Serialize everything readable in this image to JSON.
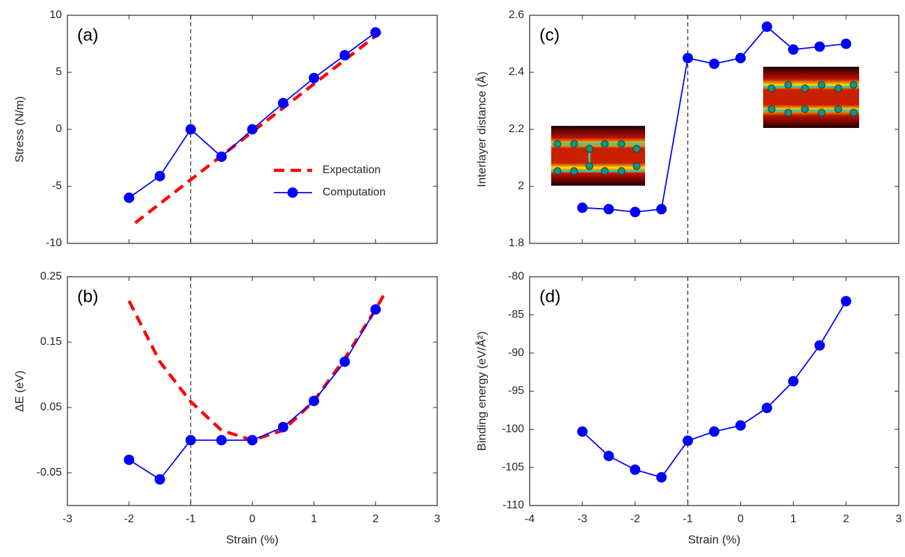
{
  "chart_data": [
    {
      "type": "line",
      "panel_label": "(a)",
      "ylabel": "Stress (N/m)",
      "xlim": [
        -3,
        3
      ],
      "xticks": [
        -3,
        -2,
        -1,
        0,
        1,
        2,
        3
      ],
      "ylim": [
        -10,
        10
      ],
      "yticks": [
        -10,
        -5,
        0,
        5,
        10
      ],
      "vline": -1,
      "legend": "lower right",
      "series": [
        {
          "name": "Expectation",
          "color": "#ff0000",
          "style": "dashed",
          "x": [
            -1.9,
            2.1
          ],
          "values": [
            -8.2,
            8.6
          ]
        },
        {
          "name": "Computation",
          "color": "#0000ff",
          "style": "marker",
          "x": [
            -2,
            -1.5,
            -1,
            -0.5,
            0,
            0.5,
            1,
            1.5,
            2
          ],
          "values": [
            -6,
            -4.1,
            0,
            -2.4,
            0,
            2.3,
            4.5,
            6.5,
            8.5
          ]
        }
      ]
    },
    {
      "type": "line",
      "panel_label": "(b)",
      "ylabel": "ΔE (eV)",
      "xlabel": "Strain (%)",
      "xlim": [
        -3,
        3
      ],
      "xticks": [
        -3,
        -2,
        -1,
        0,
        1,
        2,
        3
      ],
      "ylim": [
        -0.1,
        0.25
      ],
      "yticks": [
        -0.05,
        0.05,
        0.15,
        0.25
      ],
      "vline": -1,
      "series": [
        {
          "name": "Expectation",
          "color": "#ff0000",
          "style": "dashed",
          "x": [
            -2,
            -1.5,
            -1,
            -0.5,
            0,
            0.5,
            1,
            1.5,
            2,
            2.15
          ],
          "values": [
            0.213,
            0.12,
            0.059,
            0.015,
            0,
            0.015,
            0.06,
            0.125,
            0.2,
            0.225
          ]
        },
        {
          "name": "Computation",
          "color": "#0000ff",
          "style": "marker",
          "x": [
            -2,
            -1.5,
            -1,
            -0.5,
            0,
            0.5,
            1,
            1.5,
            2
          ],
          "values": [
            -0.03,
            -0.06,
            0,
            0,
            0,
            0.02,
            0.06,
            0.12,
            0.2
          ]
        }
      ]
    },
    {
      "type": "line",
      "panel_label": "(c)",
      "ylabel": "Interlayer distance (Å)",
      "xlim": [
        -4,
        3
      ],
      "xticks": [
        -4,
        -3,
        -2,
        -1,
        0,
        1,
        2,
        3
      ],
      "ylim": [
        1.8,
        2.6
      ],
      "yticks": [
        1.8,
        2,
        2.2,
        2.4,
        2.6
      ],
      "vline": -1,
      "series": [
        {
          "name": "Computation",
          "color": "#0000ff",
          "style": "marker",
          "x": [
            -3,
            -2.5,
            -2,
            -1.5,
            -1,
            -0.5,
            0,
            0.5,
            1,
            1.5,
            2
          ],
          "values": [
            1.925,
            1.92,
            1.91,
            1.92,
            2.45,
            2.43,
            2.45,
            2.56,
            2.48,
            2.49,
            2.5
          ]
        }
      ]
    },
    {
      "type": "line",
      "panel_label": "(d)",
      "ylabel": "Binding energy (eV/Å²)",
      "xlabel": "Strain (%)",
      "xlim": [
        -4,
        3
      ],
      "xticks": [
        -4,
        -3,
        -2,
        -1,
        0,
        1,
        2,
        3
      ],
      "ylim": [
        -110,
        -80
      ],
      "yticks": [
        -110,
        -105,
        -100,
        -95,
        -90,
        -85,
        -80
      ],
      "vline": -1,
      "series": [
        {
          "name": "Computation",
          "color": "#0000ff",
          "style": "marker",
          "x": [
            -3,
            -2.5,
            -2,
            -1.5,
            -1,
            -0.5,
            0,
            0.5,
            1,
            1.5,
            2
          ],
          "values": [
            -100.3,
            -103.5,
            -105.3,
            -106.3,
            -101.5,
            -100.3,
            -99.5,
            -97.2,
            -93.7,
            -89,
            -83.2
          ]
        }
      ]
    }
  ]
}
